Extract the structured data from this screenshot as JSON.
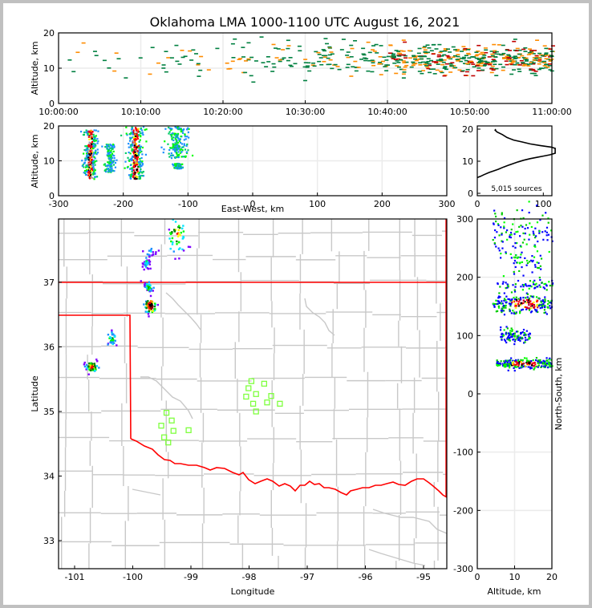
{
  "title": "Oklahoma LMA 1000-1100 UTC August 16, 2021",
  "colors": {
    "state_border": "#ff0000",
    "county_border": "#c8c8c8",
    "station": "#7fff3f",
    "grid": "#ebebeb",
    "density": [
      "#0000ff",
      "#7f00ff",
      "#1e90ff",
      "#00e5ff",
      "#00ff00",
      "#008000",
      "#ffff00",
      "#ff8c00",
      "#ff0000",
      "#8b0000",
      "#000000"
    ]
  },
  "chart_data": [
    {
      "id": "time_height",
      "type": "heatmap",
      "xlabel": "",
      "ylabel": "Altitude, km",
      "xlim": [
        "10:00:00",
        "11:00:00"
      ],
      "ylim": [
        0,
        20
      ],
      "xticks": [
        "10:00:00",
        "10:10:00",
        "10:20:00",
        "10:30:00",
        "10:40:00",
        "10:50:00",
        "11:00:00"
      ],
      "yticks": [
        "0",
        "10",
        "20"
      ],
      "grid": true,
      "description": "Sparse VHF sources increasing in density after 10:40 UTC, concentrated 8-17 km altitude",
      "density_profile": [
        {
          "minute_start": 0,
          "minute_end": 10,
          "alt_center": 13,
          "alt_spread": 5,
          "density": 0.05
        },
        {
          "minute_start": 10,
          "minute_end": 20,
          "alt_center": 13,
          "alt_spread": 4,
          "density": 0.1
        },
        {
          "minute_start": 20,
          "minute_end": 30,
          "alt_center": 13,
          "alt_spread": 4,
          "density": 0.2
        },
        {
          "minute_start": 30,
          "minute_end": 40,
          "alt_center": 13,
          "alt_spread": 3,
          "density": 0.35
        },
        {
          "minute_start": 40,
          "minute_end": 50,
          "alt_center": 12.5,
          "alt_spread": 3,
          "density": 0.8
        },
        {
          "minute_start": 50,
          "minute_end": 60,
          "alt_center": 12.5,
          "alt_spread": 3,
          "density": 0.9
        }
      ]
    },
    {
      "id": "east_west_altitude",
      "type": "heatmap",
      "xlabel": "East-West, km",
      "ylabel": "Altitude, km",
      "xlim": [
        -300,
        300
      ],
      "ylim": [
        0,
        20
      ],
      "xticks": [
        "-300",
        "-200",
        "-100",
        "0",
        "100",
        "200",
        "300"
      ],
      "yticks": [
        "0",
        "10",
        "20"
      ],
      "grid": true,
      "clusters": [
        {
          "x_center": -252,
          "x_spread": 5,
          "alt_min": 5,
          "alt_max": 19,
          "intensity": 1.0
        },
        {
          "x_center": -222,
          "x_spread": 4,
          "alt_min": 7,
          "alt_max": 15,
          "intensity": 0.4
        },
        {
          "x_center": -182,
          "x_spread": 6,
          "alt_min": 5,
          "alt_max": 20,
          "intensity": 1.0
        },
        {
          "x_center": -118,
          "x_spread": 8,
          "alt_min": 11,
          "alt_max": 20,
          "intensity": 0.6
        },
        {
          "x_center": -118,
          "x_spread": 3,
          "alt_min": 8,
          "alt_max": 9.5,
          "intensity": 0.2
        }
      ]
    },
    {
      "id": "altitude_histogram",
      "type": "line",
      "xlabel": "",
      "ylabel": "",
      "xlim": [
        0,
        113
      ],
      "ylim": [
        0,
        20
      ],
      "xticks": [
        "0",
        "100"
      ],
      "yticks": [
        "0",
        "10",
        "20"
      ],
      "annotation": "5,015 sources",
      "points": [
        [
          0,
          4.9
        ],
        [
          5,
          5.3
        ],
        [
          10,
          5.8
        ],
        [
          18,
          6.5
        ],
        [
          25,
          7.0
        ],
        [
          32,
          7.5
        ],
        [
          40,
          8.2
        ],
        [
          48,
          8.8
        ],
        [
          55,
          9.3
        ],
        [
          62,
          9.8
        ],
        [
          70,
          10.3
        ],
        [
          80,
          10.8
        ],
        [
          90,
          11.2
        ],
        [
          100,
          11.6
        ],
        [
          110,
          12.0
        ],
        [
          120,
          12.5
        ],
        [
          130,
          12.8
        ],
        [
          140,
          13.1
        ],
        [
          146,
          13.3
        ],
        [
          140,
          13.6
        ],
        [
          128,
          14.0
        ],
        [
          112,
          14.4
        ],
        [
          95,
          14.9
        ],
        [
          80,
          15.4
        ],
        [
          68,
          16.0
        ],
        [
          55,
          16.6
        ],
        [
          45,
          17.4
        ],
        [
          38,
          18.3
        ],
        [
          30,
          19.1
        ],
        [
          27,
          19.7
        ],
        [
          28,
          20.0
        ]
      ]
    },
    {
      "id": "plan_view_map",
      "type": "scatter",
      "xlabel": "Longitude",
      "ylabel": "Latitude",
      "xlim": [
        -101.28,
        -94.6
      ],
      "ylim": [
        32.58,
        37.95
      ],
      "xticks": [
        "-101",
        "-100",
        "-99",
        "-98",
        "-97",
        "-96",
        "-95"
      ],
      "yticks": [
        "33",
        "34",
        "35",
        "36",
        "37"
      ],
      "storm_cells": [
        {
          "lon": -99.25,
          "lat": 37.75,
          "spread_lon": 0.08,
          "spread_lat": 0.14,
          "intensity": 0.6
        },
        {
          "lon": -99.72,
          "lat": 37.47,
          "spread_lon": 0.06,
          "spread_lat": 0.05,
          "intensity": 0.15
        },
        {
          "lon": -99.77,
          "lat": 37.3,
          "spread_lon": 0.03,
          "spread_lat": 0.04,
          "intensity": 0.3
        },
        {
          "lon": -99.74,
          "lat": 36.95,
          "spread_lon": 0.04,
          "spread_lat": 0.04,
          "intensity": 0.4
        },
        {
          "lon": -99.71,
          "lat": 36.65,
          "spread_lon": 0.05,
          "spread_lat": 0.06,
          "intensity": 1.0
        },
        {
          "lon": -100.37,
          "lat": 36.14,
          "spread_lon": 0.04,
          "spread_lat": 0.05,
          "intensity": 0.4
        },
        {
          "lon": -100.72,
          "lat": 35.71,
          "spread_lon": 0.05,
          "spread_lat": 0.04,
          "intensity": 0.8
        }
      ],
      "stations": [
        {
          "lon": -99.42,
          "lat": 34.98
        },
        {
          "lon": -99.33,
          "lat": 34.86
        },
        {
          "lon": -99.51,
          "lat": 34.78
        },
        {
          "lon": -99.3,
          "lat": 34.7
        },
        {
          "lon": -99.04,
          "lat": 34.71
        },
        {
          "lon": -99.46,
          "lat": 34.6
        },
        {
          "lon": -99.39,
          "lat": 34.52
        },
        {
          "lon": -97.96,
          "lat": 35.47
        },
        {
          "lon": -97.74,
          "lat": 35.43
        },
        {
          "lon": -98.01,
          "lat": 35.36
        },
        {
          "lon": -97.88,
          "lat": 35.27
        },
        {
          "lon": -98.05,
          "lat": 35.23
        },
        {
          "lon": -97.62,
          "lat": 35.24
        },
        {
          "lon": -97.93,
          "lat": 35.12
        },
        {
          "lon": -97.69,
          "lat": 35.14
        },
        {
          "lon": -97.47,
          "lat": 35.12
        },
        {
          "lon": -97.88,
          "lat": 35.0
        }
      ]
    },
    {
      "id": "altitude_north_south",
      "type": "heatmap",
      "xlabel": "Altitude, km",
      "ylabel": "North-South, km",
      "xlim": [
        0,
        20
      ],
      "ylim": [
        -300,
        300
      ],
      "xticks": [
        "0",
        "10",
        "20"
      ],
      "yticks": [
        "-300",
        "-200",
        "-100",
        "0",
        "100",
        "200",
        "300"
      ],
      "grid": true,
      "clusters": [
        {
          "ns_center": 275,
          "ns_spread": 20,
          "alt_min": 4,
          "alt_max": 20,
          "intensity": 0.5
        },
        {
          "ns_center": 225,
          "ns_spread": 12,
          "alt_min": 8,
          "alt_max": 17,
          "intensity": 0.1
        },
        {
          "ns_center": 187,
          "ns_spread": 5,
          "alt_min": 5,
          "alt_max": 20,
          "intensity": 0.2
        },
        {
          "ns_center": 155,
          "ns_spread": 8,
          "alt_min": 4,
          "alt_max": 20,
          "intensity": 1.0
        },
        {
          "ns_center": 101,
          "ns_spread": 6,
          "alt_min": 6,
          "alt_max": 14,
          "intensity": 0.4
        },
        {
          "ns_center": 53,
          "ns_spread": 4,
          "alt_min": 5,
          "alt_max": 20,
          "intensity": 1.0
        }
      ]
    }
  ]
}
